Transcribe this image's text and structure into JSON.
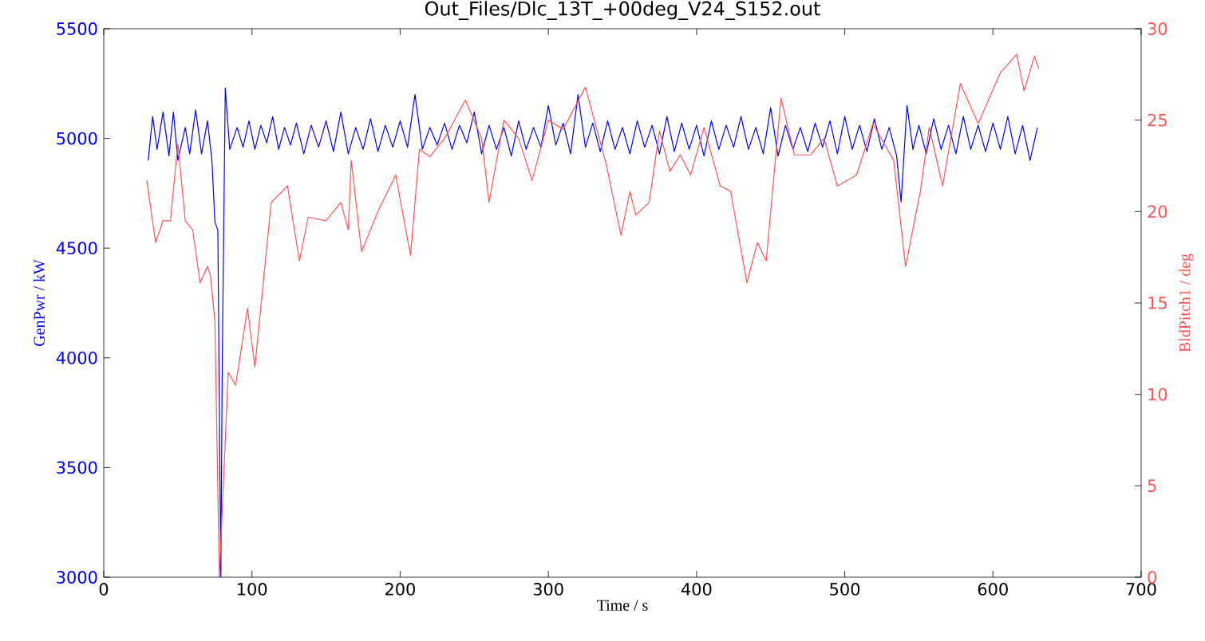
{
  "chart_data": {
    "type": "line",
    "title": "Out_Files/Dlc_13T_+00deg_V24_S152.out",
    "xlabel": "Time / s",
    "ylabel": "GenPwr / kW",
    "y2label": "BldPitch1 / deg",
    "xlim": [
      0,
      700
    ],
    "xticks": [
      0,
      100,
      200,
      300,
      400,
      500,
      600,
      700
    ],
    "ylim": [
      3000,
      5500
    ],
    "yticks": [
      3000,
      3500,
      4000,
      4500,
      5000,
      5500
    ],
    "y2lim": [
      0,
      30
    ],
    "y2ticks": [
      0,
      5,
      10,
      15,
      20,
      25,
      30
    ],
    "grid": false,
    "marker": "none",
    "line_style": "solid",
    "series": [
      {
        "color": "#0000ff",
        "x": [
          30,
          33,
          36,
          40,
          44,
          47,
          50,
          55,
          58,
          62,
          66,
          70,
          73,
          75,
          77,
          79,
          80,
          82,
          85,
          90,
          94,
          98,
          102,
          106,
          110,
          114,
          118,
          122,
          126,
          130,
          135,
          140,
          145,
          150,
          155,
          160,
          165,
          170,
          175,
          180,
          185,
          190,
          195,
          200,
          205,
          210,
          215,
          220,
          225,
          230,
          235,
          240,
          245,
          250,
          255,
          260,
          265,
          270,
          275,
          280,
          285,
          290,
          295,
          300,
          305,
          310,
          315,
          320,
          325,
          330,
          335,
          340,
          345,
          350,
          355,
          360,
          365,
          370,
          375,
          380,
          385,
          390,
          395,
          400,
          405,
          410,
          415,
          420,
          425,
          430,
          435,
          440,
          445,
          450,
          455,
          460,
          465,
          470,
          475,
          480,
          485,
          490,
          495,
          500,
          505,
          510,
          515,
          520,
          525,
          530,
          535,
          538,
          542,
          546,
          550,
          555,
          560,
          565,
          570,
          575,
          580,
          585,
          590,
          595,
          600,
          605,
          610,
          615,
          620,
          625,
          630
        ],
        "values": [
          4900,
          5100,
          4950,
          5120,
          4920,
          5120,
          4900,
          5050,
          4930,
          5130,
          4930,
          5080,
          4900,
          4620,
          4580,
          3000,
          4000,
          5230,
          4950,
          5050,
          4960,
          5080,
          4950,
          5060,
          4980,
          5100,
          4950,
          5050,
          4970,
          5070,
          4930,
          5060,
          4960,
          5080,
          4940,
          5120,
          4930,
          5050,
          4950,
          5090,
          4940,
          5060,
          4960,
          5080,
          4960,
          5200,
          4950,
          5050,
          4970,
          5070,
          4950,
          5060,
          4980,
          5120,
          4930,
          5060,
          4950,
          5050,
          4920,
          5080,
          4950,
          5050,
          4960,
          5150,
          4970,
          5070,
          4930,
          5200,
          4960,
          5070,
          4940,
          5080,
          4950,
          5050,
          4930,
          5080,
          4960,
          5060,
          4930,
          5100,
          4940,
          5070,
          4950,
          5060,
          4920,
          5080,
          4950,
          5060,
          4960,
          5100,
          4950,
          5050,
          4930,
          5140,
          4920,
          5060,
          4950,
          5050,
          4940,
          5070,
          4960,
          5080,
          4930,
          5100,
          4950,
          5060,
          4940,
          5090,
          4950,
          5050,
          4920,
          4710,
          5150,
          4950,
          5060,
          4930,
          5090,
          4950,
          5060,
          4930,
          5100,
          4950,
          5060,
          4940,
          5070,
          4950,
          5100,
          4930,
          5060,
          4900,
          5050
        ]
      },
      {
        "color": "#ff5555",
        "axis": "y2",
        "x": [
          29,
          35,
          40,
          45,
          50,
          55,
          60,
          65,
          70,
          72,
          75,
          78,
          84,
          89,
          97,
          102,
          113,
          124,
          132,
          138,
          150,
          160,
          165,
          167,
          174,
          185,
          197,
          207,
          213,
          220,
          230,
          244,
          255,
          260,
          270,
          280,
          289,
          300,
          310,
          325,
          339,
          349,
          355,
          359,
          368,
          375,
          382,
          389,
          396,
          405,
          416,
          423,
          434,
          441,
          447,
          457,
          466,
          477,
          486,
          495,
          508,
          519,
          533,
          541,
          551,
          557,
          566,
          578,
          590,
          605,
          616,
          621,
          628,
          631
        ],
        "values": [
          21.7,
          18.3,
          19.5,
          19.5,
          23.7,
          19.5,
          19.0,
          16.1,
          17.0,
          16.5,
          14.0,
          0,
          11.2,
          10.5,
          14.7,
          11.5,
          20.5,
          21.4,
          17.3,
          19.7,
          19.5,
          20.5,
          19.0,
          22.8,
          17.8,
          20.0,
          22.0,
          17.6,
          23.4,
          23.0,
          24.0,
          26.1,
          24.0,
          20.5,
          25.0,
          24.0,
          21.7,
          25.0,
          24.5,
          26.8,
          22.6,
          18.7,
          21.1,
          19.8,
          20.5,
          24.4,
          22.2,
          23.1,
          22.0,
          24.6,
          21.4,
          21.1,
          16.1,
          18.3,
          17.3,
          26.2,
          23.1,
          23.1,
          24.0,
          21.4,
          22.0,
          24.8,
          22.8,
          17.0,
          21.1,
          24.6,
          21.4,
          27.0,
          24.8,
          27.6,
          28.6,
          26.6,
          28.5,
          27.8
        ]
      }
    ]
  }
}
